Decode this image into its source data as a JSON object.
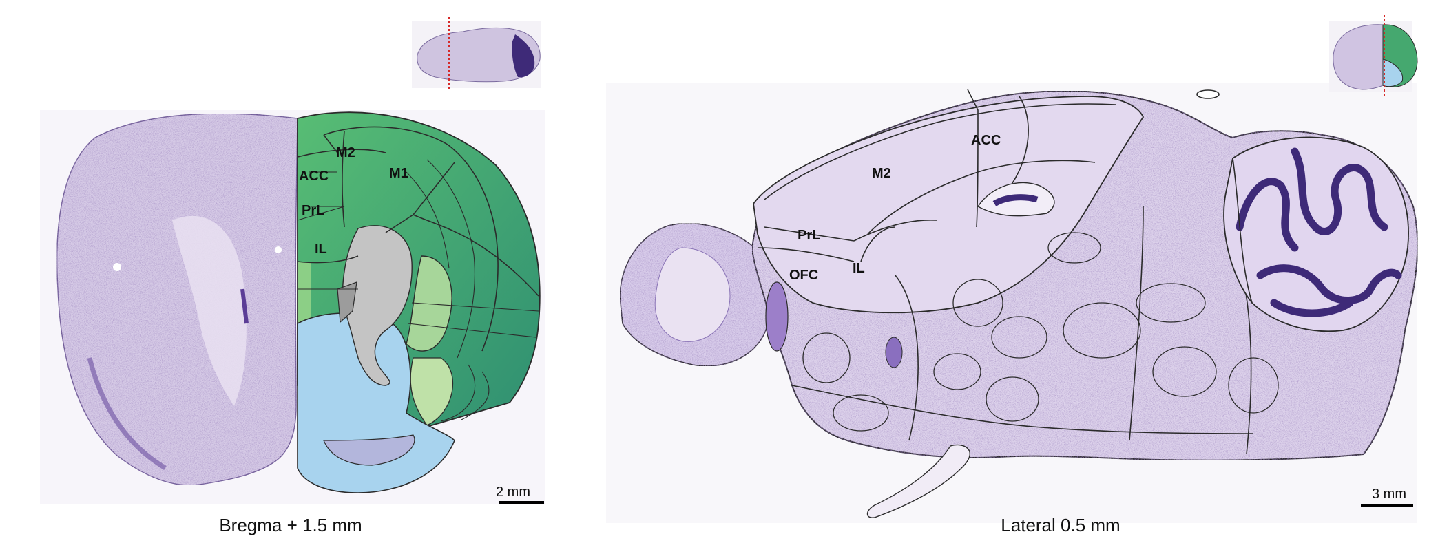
{
  "coronal_panel": {
    "region_labels": [
      "M2",
      "ACC",
      "M1",
      "PrL",
      "IL"
    ],
    "scale_bar": "2 mm",
    "caption": "Bregma + 1.5 mm"
  },
  "sagittal_panel": {
    "region_labels": [
      "ACC",
      "M2",
      "PrL",
      "OFC",
      "IL"
    ],
    "scale_bar": "3 mm",
    "caption": "Lateral 0.5 mm"
  },
  "colors": {
    "nissl_stain": "#c9b9dd",
    "nissl_dark": "#3e2a78",
    "cortex_green": "#3fa66d",
    "cortex_light_green": "#b8dca0",
    "striatum_blue": "#a8d3ee",
    "ventricle_gray": "#c4c4c4",
    "section_line": "#d62828"
  }
}
